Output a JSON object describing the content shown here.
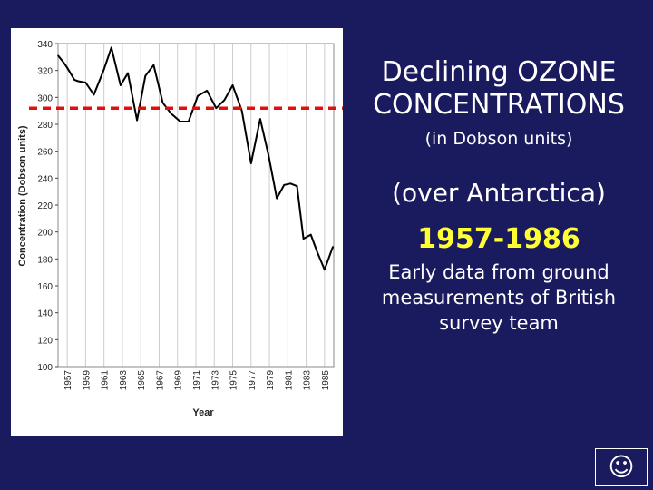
{
  "slide": {
    "title": "Declining OZONE CONCENTRATIONS",
    "subtitle": "(in Dobson units)",
    "region": "(over Antarctica)",
    "years": "1957-1986",
    "note": "Early data from ground measurements of British survey team",
    "nav_icon": "smiley-face-icon",
    "nav_glyph": "☺"
  },
  "colors": {
    "background": "#1a1a5e",
    "series_line": "#000000",
    "reference_line": "#e01010",
    "years_text": "#ffff33"
  },
  "chart_data": {
    "type": "line",
    "xlabel": "Year",
    "ylabel": "Concentration (Dobson units)",
    "ylim": [
      100,
      340
    ],
    "yticks": [
      340,
      320,
      300,
      280,
      260,
      240,
      220,
      200,
      180,
      160,
      140,
      120,
      100
    ],
    "xlim": [
      1956,
      1986
    ],
    "xticks": [
      1957,
      1959,
      1961,
      1963,
      1965,
      1967,
      1969,
      1971,
      1973,
      1975,
      1977,
      1979,
      1981,
      1983,
      1985
    ],
    "grid": "vertical lines at x ticks",
    "series": [
      {
        "x": [
          1956,
          1956.6,
          1957,
          1957.8,
          1958.2,
          1959.0,
          1959.9,
          1961.0,
          1961.8,
          1962.8,
          1963.6,
          1964.6,
          1965.5,
          1966.4,
          1967.4,
          1968.3,
          1969.3,
          1970.2,
          1971.2,
          1972.2,
          1973.2,
          1974.1,
          1975.0,
          1976.0,
          1977.0,
          1978.0,
          1978.9,
          1979.8,
          1980.6,
          1981.3,
          1982.0,
          1982.7,
          1983.5,
          1984.2,
          1985.0,
          1985.9
        ],
        "values": [
          331,
          326,
          322,
          313,
          312,
          311,
          302,
          321,
          337,
          309,
          318,
          283,
          316,
          324,
          296,
          288,
          282,
          282,
          301,
          305,
          292,
          298,
          309,
          290,
          251,
          284,
          257,
          225,
          235,
          236,
          234,
          195,
          198,
          185,
          172,
          189
        ]
      }
    ],
    "reference_lines": [
      {
        "y": 292,
        "style": "dashed"
      }
    ]
  }
}
